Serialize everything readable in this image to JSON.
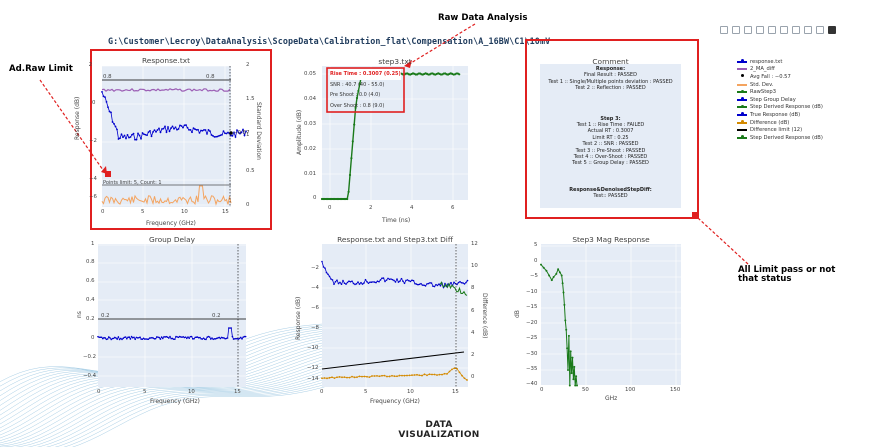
{
  "path_title": "G:\\Customer\\Lecroy\\DataAnalysis\\ScopeData\\Calibration_flat\\Compensation\\A_16BW\\C1\\10mV",
  "callouts": {
    "raw_data_analysis": "Raw Data Analysis",
    "ad_raw_limit": "Ad.Raw Limit",
    "all_limit_line1": "All Limit pass or not",
    "all_limit_line2": "that status"
  },
  "toolbar": {
    "icons": [
      "camera-icon",
      "zoom-icon",
      "pan-icon",
      "box-select-icon",
      "lasso-icon",
      "zoom-in-icon",
      "zoom-out-icon",
      "autoscale-icon",
      "reset-axes-icon",
      "plotly-logo-icon"
    ]
  },
  "plots": {
    "response": {
      "title": "Response.txt",
      "ylabel": "Response (dB)",
      "y2label": "Standard Deviation",
      "xlabel": "Frequency (GHz)",
      "yticks": [
        "2",
        "0",
        "−2",
        "−4",
        "−6",
        "−8"
      ],
      "y2ticks": [
        "2",
        "1.5",
        "1",
        "0.5",
        "0"
      ],
      "xticks": [
        "0",
        "5",
        "10",
        "15"
      ],
      "limit_left": "0.8",
      "limit_right": "0.8",
      "marker_label": "−0.57",
      "points_limit": "Points limit: 5, Count: 1"
    },
    "step3": {
      "title": "step3.txt",
      "ylabel": "Amplitude (dB)",
      "xlabel": "Time (ns)",
      "yticks": [
        "0.05",
        "0.04",
        "0.03",
        "0.02",
        "0.01",
        "0"
      ],
      "xticks": [
        "0",
        "2",
        "4",
        "6"
      ],
      "annotations": {
        "rise_time": "Rise Time : 0.3007 (0.25)",
        "snr": "SNR : 40.7 (40 - 55.0)",
        "pre_shoot": "Pre Shoot : 0.0 (4.0)",
        "over_shoot": "Over Shoot : 0.8 (9.0)"
      }
    },
    "group_delay": {
      "title": "Group Delay",
      "ylabel": "ns",
      "xlabel": "Frequency (GHz)",
      "yticks": [
        "1",
        "0.8",
        "0.6",
        "0.4",
        "0.2",
        "0",
        "−0.2",
        "−0.4"
      ],
      "xticks": [
        "0",
        "5",
        "10",
        "15"
      ],
      "limit_left": "0.2",
      "limit_right": "0.2"
    },
    "diff": {
      "title": "Response.txt and Step3.txt Diff",
      "ylabel": "Response (dB)",
      "y2label": "Difference (dB)",
      "xlabel": "Frequency (GHz)",
      "yticks": [
        "−2",
        "−4",
        "−6",
        "−8",
        "−10",
        "−12",
        "−14"
      ],
      "y2ticks": [
        "12",
        "10",
        "8",
        "6",
        "4",
        "2",
        "0"
      ],
      "xticks": [
        "0",
        "5",
        "10",
        "15"
      ]
    },
    "step3mag": {
      "title": "Step3 Mag Response",
      "ylabel": "dB",
      "xlabel": "GHz",
      "yticks": [
        "5",
        "0",
        "−5",
        "−10",
        "−15",
        "−20",
        "−25",
        "−30",
        "−35",
        "−40"
      ],
      "xticks": [
        "0",
        "50",
        "100",
        "150"
      ]
    }
  },
  "comment": {
    "title": "Comment",
    "response_header": "Response:",
    "response_lines": [
      "Final Result : PASSED",
      "Test 1 :: Single/Multiple points deviation : PASSED",
      "Test 2 :: Reflection : PASSED"
    ],
    "step_header": "Step 3:",
    "step_lines": [
      "Test 1 :: Rise Time : FAILED",
      "Actual RT : 0.3007",
      "Limit RT : 0.25",
      "Test 2 :: SNR : PASSED",
      "Test 3 :: Pre-Shoot : PASSED",
      "Test 4 :: Over-Shoot : PASSED",
      "Test 5 :: Group Delay : PASSED"
    ],
    "denoised_header": "Response&DenoisedStepDiff:",
    "denoised_lines": [
      "Test:: PASSED"
    ]
  },
  "legend": [
    {
      "label": "response.txt",
      "color": "#0000cc",
      "marker": true
    },
    {
      "label": "2_MA_diff",
      "color": "#9c5fb5",
      "marker": false
    },
    {
      "label": "Avg Fall : −0.57",
      "color": "#000000",
      "marker": true,
      "only_marker": true
    },
    {
      "label": "Std. Dev.",
      "color": "#f4a460",
      "marker": false
    },
    {
      "label": "RawStep3",
      "color": "#1a7a1a",
      "marker": true
    },
    {
      "label": "Step Group Delay",
      "color": "#0000cc",
      "marker": true
    },
    {
      "label": "Step Derived Response (dB)",
      "color": "#1a7a1a",
      "marker": true
    },
    {
      "label": "True Response (dB)",
      "color": "#0000cc",
      "marker": true
    },
    {
      "label": "Difference (dB)",
      "color": "#d48a00",
      "marker": true
    },
    {
      "label": "Difference limit (12)",
      "color": "#000000",
      "marker": false
    },
    {
      "label": "Step Derived Response (dB)",
      "color": "#1a7a1a",
      "marker": true
    }
  ],
  "footer": {
    "line1": "DATA",
    "line2": "VISUALIZATION"
  },
  "colors": {
    "accent_red": "#e02020",
    "plot_bg": "#e5ecf6",
    "blue": "#0000cc",
    "green": "#1a7a1a",
    "orange": "#f4a460",
    "purple": "#9c5fb5"
  }
}
